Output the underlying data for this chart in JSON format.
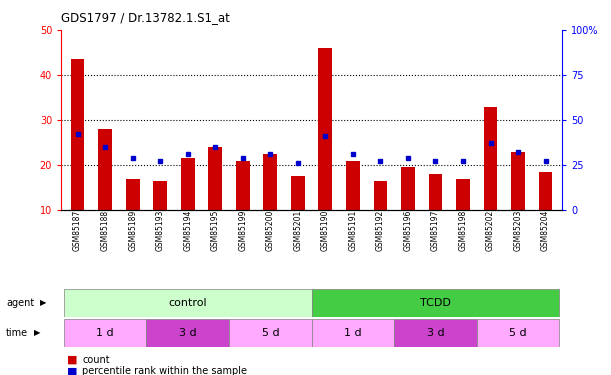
{
  "title": "GDS1797 / Dr.13782.1.S1_at",
  "samples": [
    "GSM85187",
    "GSM85188",
    "GSM85189",
    "GSM85193",
    "GSM85194",
    "GSM85195",
    "GSM85199",
    "GSM85200",
    "GSM85201",
    "GSM85190",
    "GSM85191",
    "GSM85192",
    "GSM85196",
    "GSM85197",
    "GSM85198",
    "GSM85202",
    "GSM85203",
    "GSM85204"
  ],
  "counts": [
    43.5,
    28.0,
    17.0,
    16.5,
    21.5,
    24.0,
    21.0,
    22.5,
    17.5,
    46.0,
    21.0,
    16.5,
    19.5,
    18.0,
    17.0,
    33.0,
    23.0,
    18.5
  ],
  "percentiles_left": [
    27.0,
    24.0,
    21.5,
    21.0,
    22.5,
    24.0,
    21.5,
    22.5,
    20.5,
    26.5,
    22.5,
    21.0,
    21.5,
    21.0,
    21.0,
    25.0,
    23.0,
    21.0
  ],
  "ylim_left": [
    10,
    50
  ],
  "ylim_right": [
    0,
    100
  ],
  "yticks_left": [
    10,
    20,
    30,
    40,
    50
  ],
  "ytick_labels_left": [
    "10",
    "20",
    "30",
    "40",
    "50"
  ],
  "yticks_right": [
    0,
    25,
    50,
    75,
    100
  ],
  "ytick_labels_right": [
    "0",
    "25",
    "50",
    "75",
    "100%"
  ],
  "bar_color": "#cc0000",
  "dot_color": "#0000cc",
  "agent_control_color": "#ccffcc",
  "agent_tcdd_color": "#44cc44",
  "time_1d_color": "#ffaaff",
  "time_3d_color": "#cc44cc",
  "time_5d_color": "#ffaaff",
  "time_groups": [
    {
      "label": "1 d",
      "start": 0,
      "end": 3,
      "color": "#ffaaff"
    },
    {
      "label": "3 d",
      "start": 3,
      "end": 6,
      "color": "#cc44cc"
    },
    {
      "label": "5 d",
      "start": 6,
      "end": 9,
      "color": "#ffaaff"
    },
    {
      "label": "1 d",
      "start": 9,
      "end": 12,
      "color": "#ffaaff"
    },
    {
      "label": "3 d",
      "start": 12,
      "end": 15,
      "color": "#cc44cc"
    },
    {
      "label": "5 d",
      "start": 15,
      "end": 18,
      "color": "#ffaaff"
    }
  ]
}
